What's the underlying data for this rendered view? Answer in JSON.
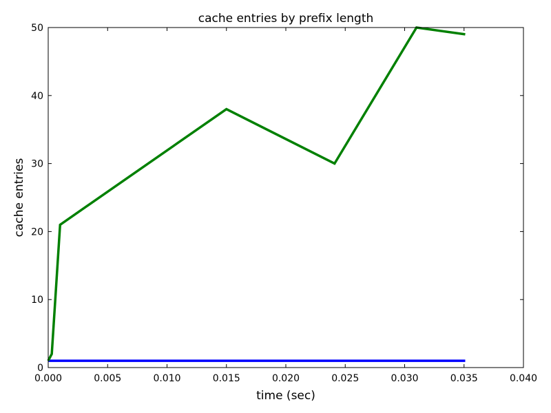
{
  "chart_data": {
    "type": "line",
    "title": "cache entries by prefix length",
    "xlabel": "time (sec)",
    "ylabel": "cache entries",
    "xlim": [
      0.0,
      0.04
    ],
    "ylim": [
      0,
      50
    ],
    "x_ticks": [
      "0.000",
      "0.005",
      "0.010",
      "0.015",
      "0.020",
      "0.025",
      "0.030",
      "0.035",
      "0.040"
    ],
    "y_ticks": [
      "0",
      "10",
      "20",
      "30",
      "40",
      "50"
    ],
    "grid": false,
    "series": [
      {
        "color": "#0000ff",
        "x": [
          0.0,
          0.0003,
          0.001,
          0.015,
          0.0241,
          0.031,
          0.0351
        ],
        "y": [
          1,
          1,
          1,
          1,
          1,
          1,
          1
        ]
      },
      {
        "color": "#008000",
        "x": [
          0.0,
          0.0003,
          0.001,
          0.015,
          0.0241,
          0.031,
          0.0351
        ],
        "y": [
          1,
          2,
          21,
          38,
          30,
          50,
          49
        ]
      }
    ]
  }
}
